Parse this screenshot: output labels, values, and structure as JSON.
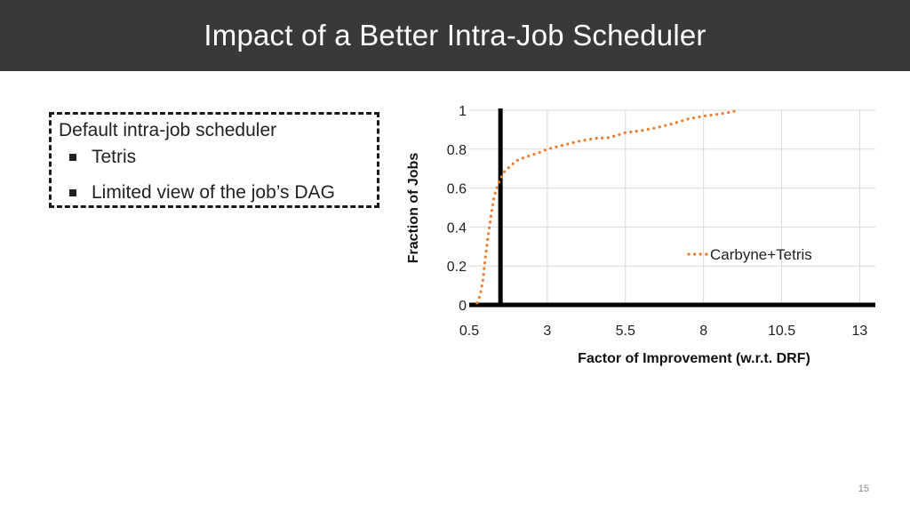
{
  "slide": {
    "title": "Impact of a Better Intra-Job Scheduler",
    "page_number": "15"
  },
  "box": {
    "heading": "Default intra-job scheduler",
    "bullets": [
      "Tetris",
      "Limited view of the job’s DAG"
    ]
  },
  "chart_data": {
    "type": "line",
    "title": "",
    "xlabel": "Factor of Improvement (w.r.t. DRF)",
    "ylabel": "Fraction of Jobs",
    "xlim": [
      0.5,
      13.5
    ],
    "ylim": [
      0,
      1
    ],
    "x_ticks": [
      0.5,
      3,
      5.5,
      8,
      10.5,
      13
    ],
    "x_tick_labels": [
      "0.5",
      "3",
      "5.5",
      "8",
      "10.5",
      "13"
    ],
    "y_ticks": [
      0,
      0.2,
      0.4,
      0.6,
      0.8,
      1
    ],
    "y_tick_labels": [
      "0",
      "0.2",
      "0.4",
      "0.6",
      "0.8",
      "1"
    ],
    "grid": true,
    "legend_position": "right",
    "series": [
      {
        "name": "Carbyne+Tetris",
        "color": "#ed7d31",
        "line_style": "dotted",
        "x": [
          0.75,
          0.85,
          0.95,
          1.0,
          1.1,
          1.2,
          1.3,
          1.45,
          1.6,
          1.8,
          2.0,
          2.3,
          2.7,
          3.0,
          3.5,
          4.0,
          4.5,
          5.0,
          5.5,
          6.0,
          6.5,
          7.0,
          7.5,
          8.0,
          8.5,
          9.0
        ],
        "y": [
          0.01,
          0.05,
          0.14,
          0.22,
          0.35,
          0.46,
          0.56,
          0.63,
          0.68,
          0.71,
          0.74,
          0.76,
          0.78,
          0.8,
          0.82,
          0.84,
          0.855,
          0.86,
          0.885,
          0.895,
          0.91,
          0.93,
          0.955,
          0.97,
          0.98,
          0.995
        ]
      }
    ]
  }
}
